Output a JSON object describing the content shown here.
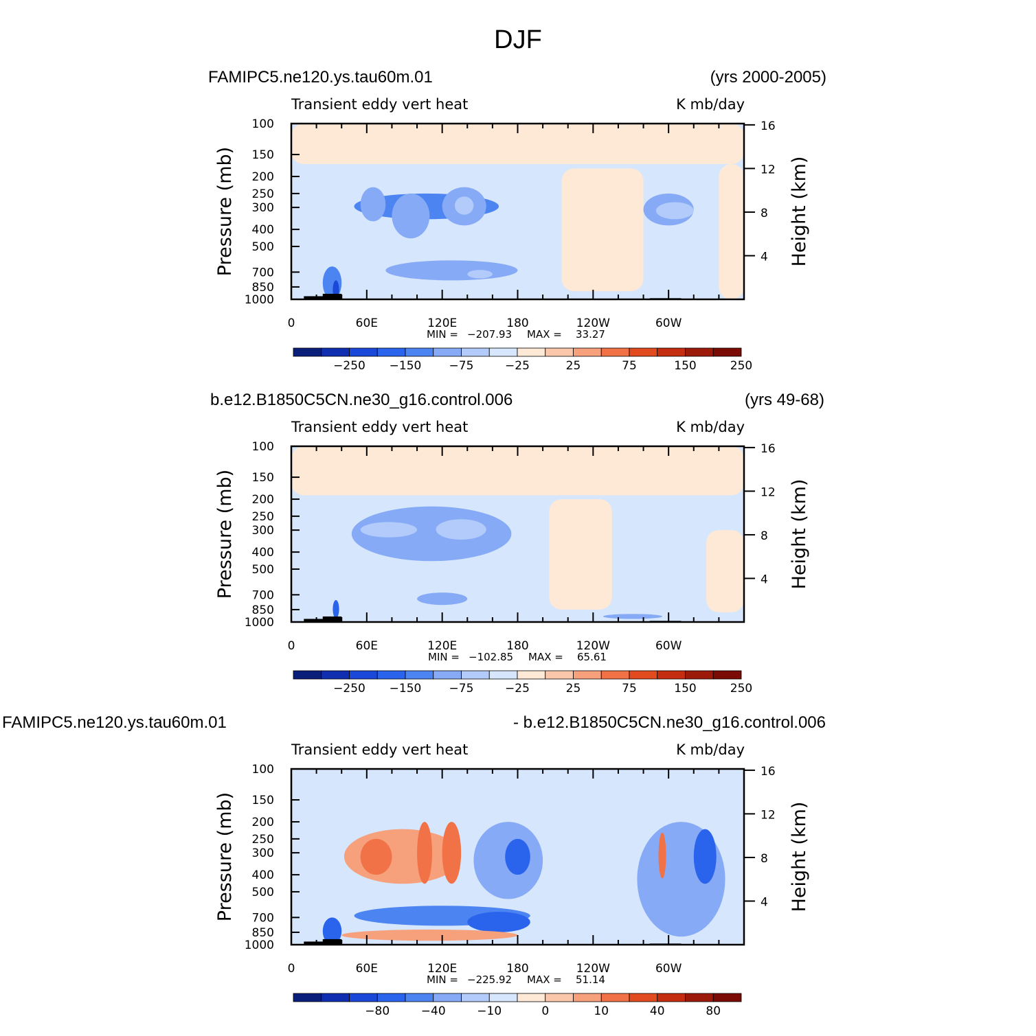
{
  "figure_title": "DJF",
  "colors": {
    "levels12": [
      "#0a1f7a",
      "#0f2fb0",
      "#1a48d8",
      "#2a63ec",
      "#4c84f2",
      "#86aaf6",
      "#b3cbfa",
      "#d6e6fd",
      "#fde9d6",
      "#fbc7ab",
      "#f6a07c",
      "#f07246",
      "#e24a1f",
      "#c42d10",
      "#9b1a0a",
      "#7a0b05"
    ],
    "land": "#000000"
  },
  "chart_data": [
    {
      "type": "heatmap",
      "title_left": "FAMIPC5.ne120.ys.tau60m.01",
      "title_right": "(yrs 2000-2005)",
      "subtitle_left": "Transient eddy vert heat",
      "subtitle_right": "K mb/day",
      "ylabel": "Pressure (mb)",
      "ylabel_right": "Height (km)",
      "y_ticks": [
        "100",
        "150",
        "200",
        "250",
        "300",
        "400",
        "500",
        "700",
        "850",
        "1000"
      ],
      "y_tick_values": [
        100,
        150,
        200,
        250,
        300,
        400,
        500,
        700,
        850,
        1000
      ],
      "y_right_ticks": [
        "16",
        "12",
        "8",
        "4"
      ],
      "y_right_values": [
        16,
        12,
        8,
        4
      ],
      "x_ticks": [
        "0",
        "60E",
        "120E",
        "180",
        "120W",
        "60W"
      ],
      "x_tick_values": [
        0,
        60,
        120,
        180,
        240,
        300
      ],
      "xlim": [
        0,
        360
      ],
      "ylim": [
        1000,
        100
      ],
      "min_label": "MIN =",
      "min_value": "−207.93",
      "max_label": "MAX =",
      "max_value": "33.27",
      "colorbar_labels": [
        "−250",
        "−150",
        "−75",
        "−25",
        "25",
        "75",
        "150",
        "250"
      ],
      "blobs": [
        {
          "lon": [
            50,
            165
          ],
          "p": [
            250,
            350
          ],
          "level": 4
        },
        {
          "lon": [
            55,
            75
          ],
          "p": [
            230,
            360
          ],
          "level": 5
        },
        {
          "lon": [
            80,
            110
          ],
          "p": [
            250,
            450
          ],
          "level": 5
        },
        {
          "lon": [
            120,
            155
          ],
          "p": [
            230,
            380
          ],
          "level": 5
        },
        {
          "lon": [
            130,
            145
          ],
          "p": [
            260,
            330
          ],
          "level": 6
        },
        {
          "lon": [
            75,
            180
          ],
          "p": [
            600,
            780
          ],
          "level": 5
        },
        {
          "lon": [
            140,
            160
          ],
          "p": [
            680,
            760
          ],
          "level": 6
        },
        {
          "lon": [
            280,
            320
          ],
          "p": [
            250,
            380
          ],
          "level": 5
        },
        {
          "lon": [
            290,
            320
          ],
          "p": [
            280,
            350
          ],
          "level": 6
        },
        {
          "lon": [
            25,
            40
          ],
          "p": [
            650,
            1000
          ],
          "level": 4
        },
        {
          "lon": [
            33,
            38
          ],
          "p": [
            780,
            1000
          ],
          "level": 2
        }
      ],
      "positive_regions": [
        {
          "lon": [
            0,
            360
          ],
          "p": [
            100,
            170
          ],
          "level": 8
        },
        {
          "lon": [
            215,
            280
          ],
          "p": [
            180,
            900
          ],
          "level": 8
        },
        {
          "lon": [
            340,
            360
          ],
          "p": [
            170,
            1000
          ],
          "level": 8
        }
      ],
      "land": [
        [
          10,
          33,
          1000,
          960
        ],
        [
          25,
          40,
          1000,
          930
        ],
        [
          285,
          310,
          1000,
          985
        ]
      ]
    },
    {
      "type": "heatmap",
      "title_left": "b.e12.B1850C5CN.ne30_g16.control.006",
      "title_right": "(yrs 49-68)",
      "subtitle_left": "Transient eddy vert heat",
      "subtitle_right": "K mb/day",
      "ylabel": "Pressure (mb)",
      "ylabel_right": "Height (km)",
      "y_ticks": [
        "100",
        "150",
        "200",
        "250",
        "300",
        "400",
        "500",
        "700",
        "850",
        "1000"
      ],
      "y_tick_values": [
        100,
        150,
        200,
        250,
        300,
        400,
        500,
        700,
        850,
        1000
      ],
      "y_right_ticks": [
        "16",
        "12",
        "8",
        "4"
      ],
      "y_right_values": [
        16,
        12,
        8,
        4
      ],
      "x_ticks": [
        "0",
        "60E",
        "120E",
        "180",
        "120W",
        "60W"
      ],
      "x_tick_values": [
        0,
        60,
        120,
        180,
        240,
        300
      ],
      "xlim": [
        0,
        360
      ],
      "ylim": [
        1000,
        100
      ],
      "min_label": "MIN =",
      "min_value": "−102.85",
      "max_label": "MAX =",
      "max_value": "65.61",
      "colorbar_labels": [
        "−250",
        "−150",
        "−75",
        "−25",
        "25",
        "75",
        "150",
        "250"
      ],
      "blobs": [
        {
          "lon": [
            48,
            175
          ],
          "p": [
            220,
            450
          ],
          "level": 5
        },
        {
          "lon": [
            55,
            100
          ],
          "p": [
            270,
            330
          ],
          "level": 6
        },
        {
          "lon": [
            115,
            155
          ],
          "p": [
            260,
            340
          ],
          "level": 6
        },
        {
          "lon": [
            100,
            140
          ],
          "p": [
            680,
            800
          ],
          "level": 5
        },
        {
          "lon": [
            33,
            38
          ],
          "p": [
            750,
            950
          ],
          "level": 3
        },
        {
          "lon": [
            248,
            295
          ],
          "p": [
            900,
            960
          ],
          "level": 5
        }
      ],
      "positive_regions": [
        {
          "lon": [
            0,
            360
          ],
          "p": [
            100,
            190
          ],
          "level": 8
        },
        {
          "lon": [
            205,
            255
          ],
          "p": [
            200,
            850
          ],
          "level": 8
        },
        {
          "lon": [
            330,
            360
          ],
          "p": [
            300,
            880
          ],
          "level": 8
        }
      ],
      "land": [
        [
          10,
          33,
          1000,
          960
        ],
        [
          25,
          40,
          1000,
          930
        ],
        [
          285,
          310,
          1000,
          985
        ]
      ]
    },
    {
      "type": "heatmap",
      "title_left": "FAMIPC5.ne120.ys.tau60m.01",
      "title_right": "- b.e12.B1850C5CN.ne30_g16.control.006",
      "subtitle_left": "Transient eddy vert heat",
      "subtitle_right": "K mb/day",
      "ylabel": "Pressure (mb)",
      "ylabel_right": "Height (km)",
      "y_ticks": [
        "100",
        "150",
        "200",
        "250",
        "300",
        "400",
        "500",
        "700",
        "850",
        "1000"
      ],
      "y_tick_values": [
        100,
        150,
        200,
        250,
        300,
        400,
        500,
        700,
        850,
        1000
      ],
      "y_right_ticks": [
        "16",
        "12",
        "8",
        "4"
      ],
      "y_right_values": [
        16,
        12,
        8,
        4
      ],
      "x_ticks": [
        "0",
        "60E",
        "120E",
        "180",
        "120W",
        "60W"
      ],
      "x_tick_values": [
        0,
        60,
        120,
        180,
        240,
        300
      ],
      "xlim": [
        0,
        360
      ],
      "ylim": [
        1000,
        100
      ],
      "min_label": "MIN =",
      "min_value": "−225.92",
      "max_label": "MAX =",
      "max_value": "51.14",
      "colorbar_labels": [
        "−80",
        "−40",
        "−10",
        "0",
        "10",
        "40",
        "80"
      ],
      "blobs": [
        {
          "lon": [
            42,
            135
          ],
          "p": [
            220,
            450
          ],
          "level": 10
        },
        {
          "lon": [
            55,
            80
          ],
          "p": [
            250,
            400
          ],
          "level": 11
        },
        {
          "lon": [
            100,
            112
          ],
          "p": [
            200,
            450
          ],
          "level": 11
        },
        {
          "lon": [
            120,
            135
          ],
          "p": [
            200,
            450
          ],
          "level": 11
        },
        {
          "lon": [
            145,
            200
          ],
          "p": [
            200,
            550
          ],
          "level": 5
        },
        {
          "lon": [
            170,
            190
          ],
          "p": [
            250,
            400
          ],
          "level": 3
        },
        {
          "lon": [
            50,
            190
          ],
          "p": [
            600,
            780
          ],
          "level": 4
        },
        {
          "lon": [
            140,
            190
          ],
          "p": [
            650,
            850
          ],
          "level": 3
        },
        {
          "lon": [
            40,
            180
          ],
          "p": [
            820,
            950
          ],
          "level": 10
        },
        {
          "lon": [
            275,
            345
          ],
          "p": [
            200,
            900
          ],
          "level": 5
        },
        {
          "lon": [
            292,
            298
          ],
          "p": [
            230,
            420
          ],
          "level": 11
        },
        {
          "lon": [
            320,
            338
          ],
          "p": [
            220,
            450
          ],
          "level": 3
        },
        {
          "lon": [
            25,
            40
          ],
          "p": [
            700,
            1000
          ],
          "level": 3
        }
      ],
      "positive_regions": [],
      "land": [
        [
          10,
          33,
          1000,
          960
        ],
        [
          25,
          40,
          1000,
          930
        ],
        [
          285,
          310,
          1000,
          985
        ]
      ]
    }
  ]
}
